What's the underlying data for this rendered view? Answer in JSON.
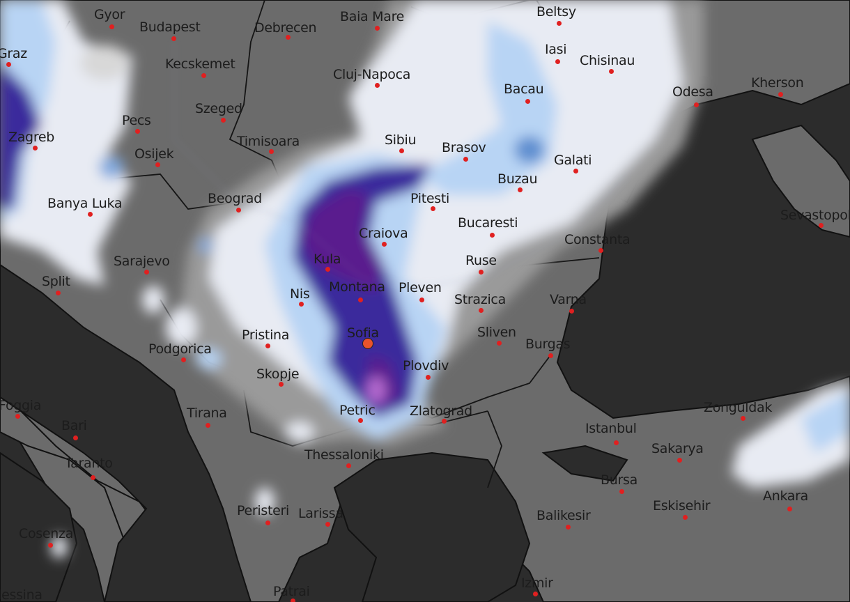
{
  "map": {
    "layer": "precipitation",
    "selected_location": "Sofia",
    "colors": {
      "sea": "#2c2c2c",
      "land": "#6b6b6b",
      "light": "#e9ecf4",
      "blue_light": "#b8d4f4",
      "blue": "#5f8fd0",
      "indigo": "#3b2b9c",
      "violet": "#5a1f8e",
      "magenta": "#b56bd0",
      "city_dot": "#e02020",
      "marker": "#e8532c"
    },
    "cities": [
      "Gyor",
      "Budapest",
      "Debrecen",
      "Baia Mare",
      "Beltsy",
      "Graz",
      "Kecskemet",
      "Cluj-Napoca",
      "Iasi",
      "Chisinau",
      "Bacau",
      "Odesa",
      "Kherson",
      "Pecs",
      "Szeged",
      "Zagreb",
      "Osijek",
      "Timisoara",
      "Sibiu",
      "Brasov",
      "Galati",
      "Buzau",
      "Banya Luka",
      "Beograd",
      "Pitesti",
      "Bucaresti",
      "Craiova",
      "Constanta",
      "Sevastopol",
      "Sarajevo",
      "Kula",
      "Ruse",
      "Split",
      "Nis",
      "Montana",
      "Pleven",
      "Strazica",
      "Varna",
      "Sofia",
      "Pristina",
      "Sliven",
      "Burgas",
      "Podgorica",
      "Plovdiv",
      "Skopje",
      "Foggia",
      "Tirana",
      "Petric",
      "Zlatograd",
      "Zonguldak",
      "Istanbul",
      "Sakarya",
      "Bari",
      "Thessaloniki",
      "Taranto",
      "Bursa",
      "Ankara",
      "Eskisehir",
      "Peristeri",
      "Larissa",
      "Balikesir",
      "Cosenza",
      "Izmir",
      "Patrai",
      "Messina"
    ]
  }
}
